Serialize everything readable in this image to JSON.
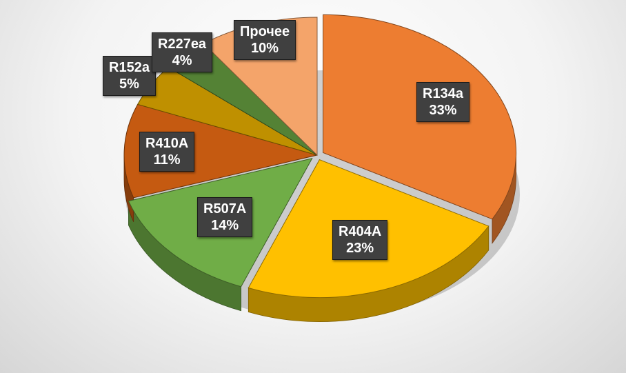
{
  "chart_data": {
    "type": "pie",
    "categories": [
      "R134a",
      "R404A",
      "R507A",
      "R410A",
      "R152a",
      "R227ea",
      "Прочее"
    ],
    "values": [
      33,
      23,
      14,
      11,
      5,
      4,
      10
    ],
    "value_labels": [
      "33%",
      "23%",
      "14%",
      "11%",
      "5%",
      "4%",
      "10%"
    ],
    "colors": [
      "#ED7D31",
      "#FFC000",
      "#70AD47",
      "#C55A11",
      "#BF9000",
      "#548235",
      "#F4A46A"
    ],
    "title": "",
    "legend": "none",
    "style": "3d-exploded"
  }
}
